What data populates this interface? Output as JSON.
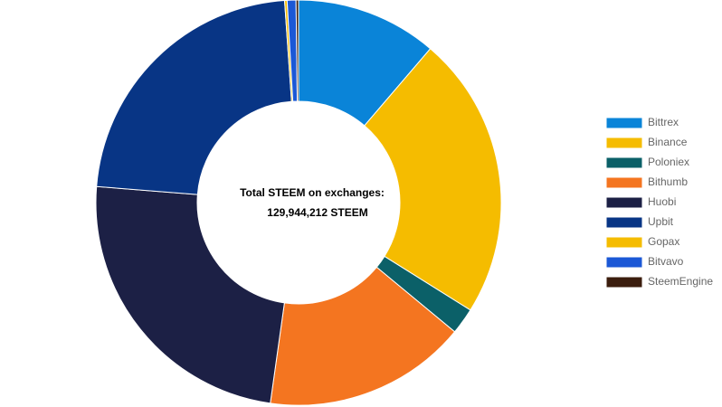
{
  "chart_data": {
    "type": "doughnut",
    "center_text": [
      "Total STEEM on exchanges:",
      "129,944,212 STEEM"
    ],
    "categories": [
      "Bittrex",
      "Binance",
      "Poloniex",
      "Bithumb",
      "Huobi",
      "Upbit",
      "Gopax",
      "Bitvavo",
      "SteemEngine"
    ],
    "values": [
      11.25,
      22.6,
      2.1,
      16.2,
      24.0,
      22.6,
      0.2,
      0.7,
      0.2
    ],
    "colors": [
      "#0a84d8",
      "#f5bc00",
      "#0b6068",
      "#f47520",
      "#1c2045",
      "#083585",
      "#f5bc00",
      "#1b58d6",
      "#3b1d0e"
    ],
    "legend": "right"
  }
}
